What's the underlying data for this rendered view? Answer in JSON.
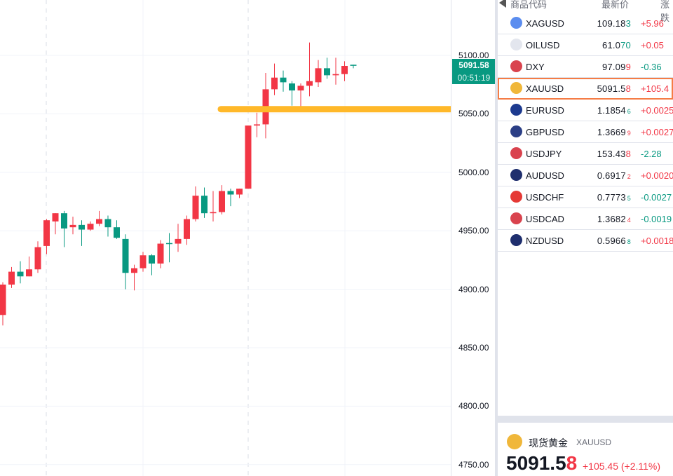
{
  "chart": {
    "symbol": "XAUUSD",
    "colors": {
      "up": "#f23645",
      "down": "#089981",
      "level_line": "#ffb829",
      "grid": "#f0f3fa"
    },
    "y_ticks": [
      "5100.00",
      "5050.00",
      "5000.00",
      "4950.00",
      "4900.00",
      "4850.00",
      "4800.00",
      "4750.00"
    ],
    "ylim": [
      4740,
      5147
    ],
    "last_price": "5091.58",
    "countdown": "00:51:19",
    "level_line_price": 5054,
    "candles": [
      [
        4878,
        4906,
        4869,
        4904
      ],
      [
        4904,
        4919,
        4901,
        4915
      ],
      [
        4915,
        4924,
        4905,
        4911
      ],
      [
        4911,
        4928,
        4911,
        4917
      ],
      [
        4917,
        4941,
        4914,
        4936
      ],
      [
        4937,
        4960,
        4930,
        4959
      ],
      [
        4958,
        4965,
        4947,
        4965
      ],
      [
        4965,
        4967,
        4936,
        4952
      ],
      [
        4953,
        4962,
        4947,
        4955
      ],
      [
        4955,
        4959,
        4937,
        4951
      ],
      [
        4951,
        4958,
        4950,
        4956
      ],
      [
        4956,
        4967,
        4954,
        4960
      ],
      [
        4960,
        4963,
        4945,
        4953
      ],
      [
        4953,
        4959,
        4943,
        4944
      ],
      [
        4943,
        4947,
        4900,
        4914
      ],
      [
        4914,
        4921,
        4899,
        4918
      ],
      [
        4918,
        4932,
        4915,
        4929
      ],
      [
        4929,
        4930,
        4912,
        4922
      ],
      [
        4922,
        4942,
        4918,
        4939
      ],
      [
        4939.5,
        4948,
        4923,
        4939
      ],
      [
        4939,
        4956,
        4932,
        4943
      ],
      [
        4943,
        4963,
        4938,
        4960
      ],
      [
        4960,
        4988,
        4958,
        4980
      ],
      [
        4980,
        4987,
        4961,
        4965
      ],
      [
        4965,
        4984,
        4958,
        4966
      ],
      [
        4966,
        4989,
        4964,
        4984
      ],
      [
        4984,
        4986,
        4971,
        4981
      ],
      [
        4981,
        4986,
        4978,
        4986
      ],
      [
        4986,
        5040,
        4986,
        5040
      ],
      [
        5040,
        5051,
        5030,
        5041
      ],
      [
        5041,
        5085,
        5029,
        5071
      ],
      [
        5071,
        5093,
        5066,
        5081
      ],
      [
        5081,
        5087,
        5069,
        5077
      ],
      [
        5076,
        5078,
        5057,
        5070
      ],
      [
        5070,
        5076,
        5056,
        5074
      ],
      [
        5074,
        5111,
        5065,
        5078
      ],
      [
        5077,
        5096,
        5073,
        5089
      ],
      [
        5089,
        5098,
        5080,
        5083
      ],
      [
        5083,
        5098,
        5075,
        5084
      ],
      [
        5084,
        5095,
        5078,
        5091
      ],
      [
        5092,
        5092,
        5089,
        5091.58
      ]
    ]
  },
  "watchlist": {
    "headers": {
      "symbol": "商品代码",
      "price": "最新价",
      "change": "涨跌"
    },
    "rows": [
      {
        "symbol": "XAGUSD",
        "price": "109.18",
        "last": "3",
        "dir": "dn",
        "small": false,
        "change": "+5.96",
        "cdir": "up",
        "icon": "silver-icon",
        "icolor": "#5b8def"
      },
      {
        "symbol": "OILUSD",
        "price": "61.0",
        "last": "70",
        "dir": "dn",
        "small": false,
        "change": "+0.05",
        "cdir": "up",
        "icon": "oil-icon",
        "icolor": "#e3e6ee"
      },
      {
        "symbol": "DXY",
        "price": "97.09",
        "last": "9",
        "dir": "up",
        "small": false,
        "change": "-0.36",
        "cdir": "dn",
        "icon": "us-flag-icon",
        "icolor": "#d9434e"
      },
      {
        "symbol": "XAUUSD",
        "price": "5091.5",
        "last": "8",
        "dir": "up",
        "small": false,
        "change": "+105.4",
        "cdir": "up",
        "icon": "gold-icon",
        "icolor": "#f0b73a",
        "selected": true
      },
      {
        "symbol": "EURUSD",
        "price": "1.1854",
        "last": "6",
        "dir": "dn",
        "small": true,
        "change": "+0.0025",
        "cdir": "up",
        "icon": "eu-flag-icon",
        "icolor": "#1d3a8f"
      },
      {
        "symbol": "GBPUSD",
        "price": "1.3669",
        "last": "9",
        "dir": "up",
        "small": true,
        "change": "+0.0027",
        "cdir": "up",
        "icon": "uk-flag-icon",
        "icolor": "#2b3f86"
      },
      {
        "symbol": "USDJPY",
        "price": "153.43",
        "last": "8",
        "dir": "up",
        "small": false,
        "change": "-2.28",
        "cdir": "dn",
        "icon": "jp-flag-icon",
        "icolor": "#d9434e"
      },
      {
        "symbol": "AUDUSD",
        "price": "0.6917",
        "last": "2",
        "dir": "up",
        "small": true,
        "change": "+0.0020",
        "cdir": "up",
        "icon": "au-flag-icon",
        "icolor": "#1f2f6e"
      },
      {
        "symbol": "USDCHF",
        "price": "0.7773",
        "last": "5",
        "dir": "dn",
        "small": true,
        "change": "-0.0027",
        "cdir": "dn",
        "icon": "ch-flag-icon",
        "icolor": "#e53935"
      },
      {
        "symbol": "USDCAD",
        "price": "1.3682",
        "last": "4",
        "dir": "up",
        "small": true,
        "change": "-0.0019",
        "cdir": "dn",
        "icon": "ca-flag-icon",
        "icolor": "#d9434e"
      },
      {
        "symbol": "NZDUSD",
        "price": "0.5966",
        "last": "8",
        "dir": "dn",
        "small": true,
        "change": "+0.0018",
        "cdir": "up",
        "icon": "nz-flag-icon",
        "icolor": "#1f2f6e"
      }
    ]
  },
  "detail": {
    "name": "现货黄金",
    "symbol": "XAUUSD",
    "price": "5091.5",
    "last": "8",
    "change": "+105.45 (+2.11%)"
  }
}
